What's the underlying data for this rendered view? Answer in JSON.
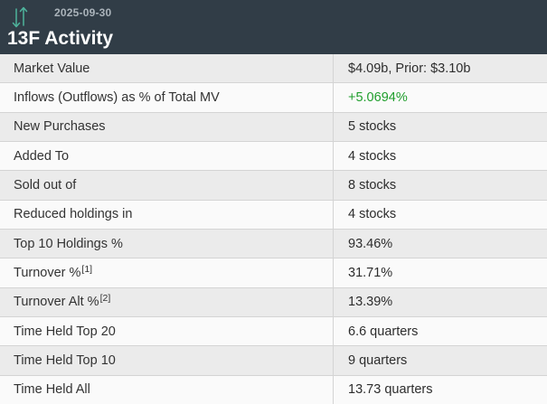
{
  "header": {
    "date": "2025-09-30",
    "title": "13F Activity",
    "icon": "swap-vertical-arrows-icon"
  },
  "table": {
    "rows": [
      {
        "label": "Market Value",
        "value": "$4.09b, Prior: $3.10b"
      },
      {
        "label": "Inflows (Outflows) as % of Total MV",
        "value": "+5.0694%",
        "value_color": "positive"
      },
      {
        "label": "New Purchases",
        "value": "5 stocks"
      },
      {
        "label": "Added To",
        "value": "4 stocks"
      },
      {
        "label": "Sold out of",
        "value": "8 stocks"
      },
      {
        "label": "Reduced holdings in",
        "value": "4 stocks"
      },
      {
        "label": "Top 10 Holdings %",
        "value": "93.46%"
      },
      {
        "label": "Turnover %",
        "sup": "[1]",
        "value": "31.71%"
      },
      {
        "label": "Turnover Alt %",
        "sup": "[2]",
        "value": "13.39%"
      },
      {
        "label": "Time Held Top 20",
        "value": "6.6 quarters"
      },
      {
        "label": "Time Held Top 10",
        "value": "9 quarters"
      },
      {
        "label": "Time Held All",
        "value": "13.73 quarters"
      }
    ]
  },
  "colors": {
    "header_bg": "#313d47",
    "title_text": "#ffffff",
    "date_text": "#aab3ba",
    "icon_teal": "#4eb39c",
    "row_alt_bg": "#ebebeb",
    "row_bg": "#fafafa",
    "border": "#d4d4d4",
    "label_text": "#333333",
    "value_text": "#2d2d2d",
    "positive_green": "#1f9e2c"
  }
}
